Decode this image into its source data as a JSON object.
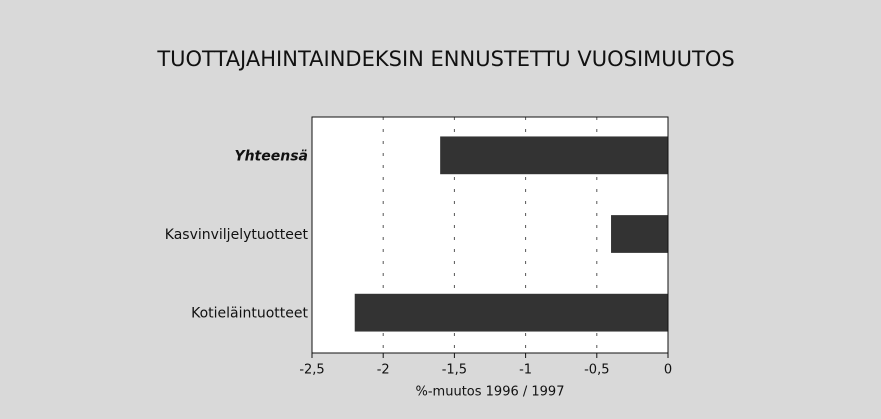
{
  "chart_data": {
    "type": "bar",
    "orientation": "horizontal",
    "title": "TUOTTAJAHINTAINDEKSIN ENNUSTETTU VUOSIMUUTOS",
    "x_label": "%-muutos 1996 / 1997",
    "categories": [
      "Yhteensä",
      "Kasvinviljelytuotteet",
      "Kotieläintuotteet"
    ],
    "values": [
      -1.6,
      -0.4,
      -2.2
    ],
    "color": "#333333",
    "xlim": [
      -2.5,
      0
    ],
    "xticks": [
      {
        "value": -2.5,
        "label": "-2,5"
      },
      -2,
      {
        "value": -1.5,
        "label": "-1,5"
      },
      -1,
      {
        "value": -0.5,
        "label": "-0,5"
      },
      0
    ],
    "grid": true
  }
}
